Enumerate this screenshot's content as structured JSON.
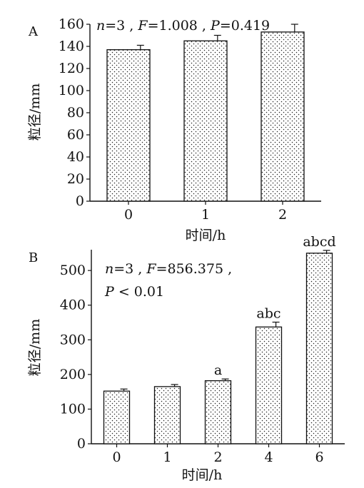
{
  "chart_data": [
    {
      "type": "bar",
      "panel_label": "A",
      "categories": [
        "0",
        "1",
        "2"
      ],
      "values": [
        137,
        145,
        153
      ],
      "errors": [
        4,
        5,
        7
      ],
      "bar_labels": [
        "",
        "",
        ""
      ],
      "annotation": {
        "n_label": "n",
        "n_value": "=3 , ",
        "f_label": "F",
        "f_value": "=1.008 , ",
        "p_label": "P",
        "p_value": "=0.419"
      },
      "xlabel": "时间/h",
      "ylabel": "粒径/mm",
      "ylim": [
        0,
        160
      ],
      "yticks": [
        "0",
        "20",
        "40",
        "60",
        "80",
        "100",
        "120",
        "140",
        "160"
      ],
      "grid": false
    },
    {
      "type": "bar",
      "panel_label": "B",
      "categories": [
        "0",
        "1",
        "2",
        "4",
        "6"
      ],
      "values": [
        152,
        165,
        182,
        337,
        550
      ],
      "errors": [
        6,
        6,
        5,
        14,
        8
      ],
      "bar_labels": [
        "",
        "",
        "a",
        "abc",
        "abcd"
      ],
      "annotation": {
        "n_label": "n",
        "n_value": "=3 , ",
        "f_label": "F",
        "f_value": "=856.375 , ",
        "p_label": "P",
        "p_value": " < 0.01"
      },
      "xlabel": "时间/h",
      "ylabel": "粒径/mm",
      "ylim": [
        0,
        560
      ],
      "yticks": [
        "0",
        "100",
        "200",
        "300",
        "400",
        "500"
      ],
      "grid": false
    }
  ]
}
